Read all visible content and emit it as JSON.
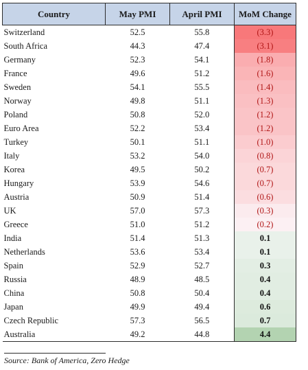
{
  "table": {
    "headers": [
      "Country",
      "May PMI",
      "April PMI",
      "MoM Change"
    ],
    "rows": [
      {
        "country": "Switzerland",
        "may": "52.5",
        "april": "55.8",
        "mom": "(3.3)",
        "mom_value": -3.3
      },
      {
        "country": "South Africa",
        "may": "44.3",
        "april": "47.4",
        "mom": "(3.1)",
        "mom_value": -3.1
      },
      {
        "country": "Germany",
        "may": "52.3",
        "april": "54.1",
        "mom": "(1.8)",
        "mom_value": -1.8
      },
      {
        "country": "France",
        "may": "49.6",
        "april": "51.2",
        "mom": "(1.6)",
        "mom_value": -1.6
      },
      {
        "country": "Sweden",
        "may": "54.1",
        "april": "55.5",
        "mom": "(1.4)",
        "mom_value": -1.4
      },
      {
        "country": "Norway",
        "may": "49.8",
        "april": "51.1",
        "mom": "(1.3)",
        "mom_value": -1.3
      },
      {
        "country": "Poland",
        "may": "50.8",
        "april": "52.0",
        "mom": "(1.2)",
        "mom_value": -1.2
      },
      {
        "country": "Euro Area",
        "may": "52.2",
        "april": "53.4",
        "mom": "(1.2)",
        "mom_value": -1.2
      },
      {
        "country": "Turkey",
        "may": "50.1",
        "april": "51.1",
        "mom": "(1.0)",
        "mom_value": -1.0
      },
      {
        "country": "Italy",
        "may": "53.2",
        "april": "54.0",
        "mom": "(0.8)",
        "mom_value": -0.8
      },
      {
        "country": "Korea",
        "may": "49.5",
        "april": "50.2",
        "mom": "(0.7)",
        "mom_value": -0.7
      },
      {
        "country": "Hungary",
        "may": "53.9",
        "april": "54.6",
        "mom": "(0.7)",
        "mom_value": -0.7
      },
      {
        "country": "Austria",
        "may": "50.9",
        "april": "51.4",
        "mom": "(0.6)",
        "mom_value": -0.6
      },
      {
        "country": "UK",
        "may": "57.0",
        "april": "57.3",
        "mom": "(0.3)",
        "mom_value": -0.3
      },
      {
        "country": "Greece",
        "may": "51.0",
        "april": "51.2",
        "mom": "(0.2)",
        "mom_value": -0.2
      },
      {
        "country": "India",
        "may": "51.4",
        "april": "51.3",
        "mom": "0.1",
        "mom_value": 0.1
      },
      {
        "country": "Netherlands",
        "may": "53.6",
        "april": "53.4",
        "mom": "0.1",
        "mom_value": 0.1
      },
      {
        "country": "Spain",
        "may": "52.9",
        "april": "52.7",
        "mom": "0.3",
        "mom_value": 0.3
      },
      {
        "country": "Russia",
        "may": "48.9",
        "april": "48.5",
        "mom": "0.4",
        "mom_value": 0.4
      },
      {
        "country": "China",
        "may": "50.8",
        "april": "50.4",
        "mom": "0.4",
        "mom_value": 0.4
      },
      {
        "country": "Japan",
        "may": "49.9",
        "april": "49.4",
        "mom": "0.6",
        "mom_value": 0.6
      },
      {
        "country": "Czech Republic",
        "may": "57.3",
        "april": "56.5",
        "mom": "0.7",
        "mom_value": 0.7
      },
      {
        "country": "Australia",
        "may": "49.2",
        "april": "44.8",
        "mom": "4.4",
        "mom_value": 4.4
      }
    ]
  },
  "colors": {
    "header_bg": "#c6d4e8",
    "negative_strong": "#f8787a",
    "neutral": "#fcfcff",
    "positive_strong": "#8fbf8a",
    "negative_text": "#b01515"
  },
  "source": "Source: Bank of America, Zero Hedge"
}
